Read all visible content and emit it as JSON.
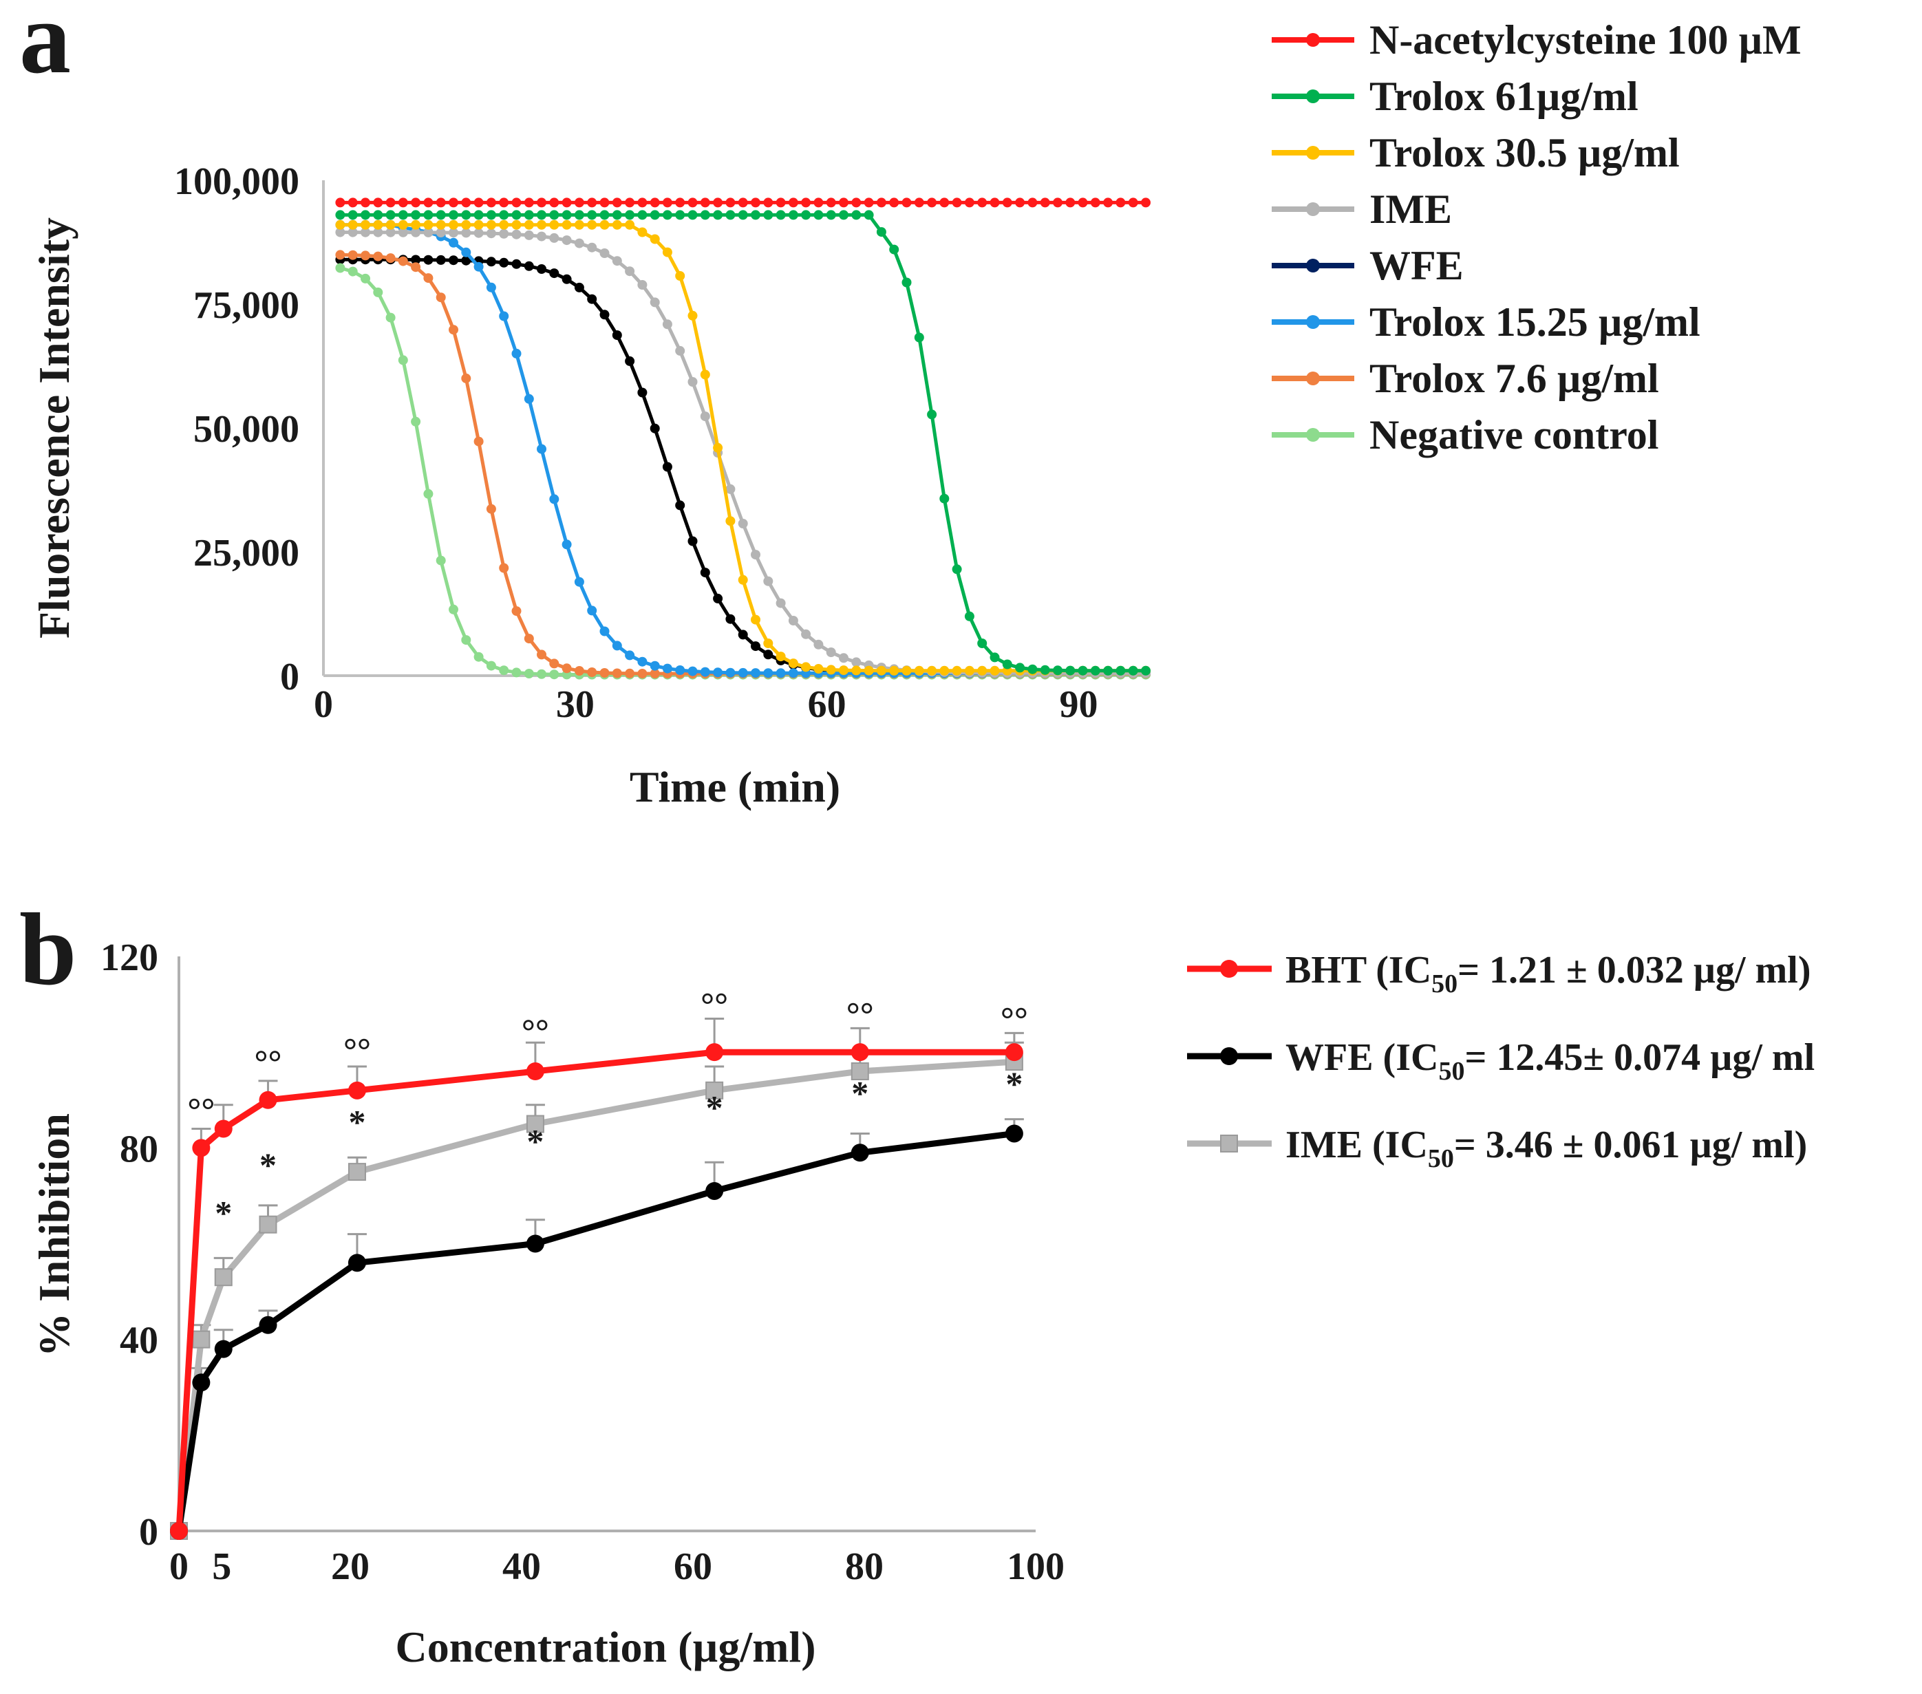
{
  "chart_data": [
    {
      "panel": "a",
      "type": "line",
      "title": "",
      "xlabel": "Time (min)",
      "ylabel": "Fluorescence Intensity",
      "xlim": [
        0,
        98
      ],
      "ylim": [
        0,
        100000
      ],
      "xticks": [
        0,
        30,
        60,
        90
      ],
      "xtick_labels": [
        "0",
        "30",
        "60",
        "90"
      ],
      "yticks": [
        0,
        25000,
        50000,
        75000,
        100000
      ],
      "ytick_labels": [
        "0",
        "25,000",
        "50,000",
        "75,000",
        "100,000"
      ],
      "grid": false,
      "legend_position": "top-right, outside",
      "point_interval": 1.5,
      "x_start": 2,
      "x_end": 98,
      "series": [
        {
          "name": "N-acetylcysteine 100 µM",
          "color": "#ff1a1a",
          "model": "flat",
          "top": 95500
        },
        {
          "name": "Trolox 61µg/ml",
          "color": "#00b050",
          "model": "logistic",
          "top": 93000,
          "bottom": 1000,
          "mid": 73,
          "width": 2.0,
          "hold": 65
        },
        {
          "name": "Trolox 30.5 µg/ml",
          "color": "#ffc000",
          "model": "logistic",
          "top": 91000,
          "bottom": 1000,
          "mid": 47,
          "width": 2.2,
          "hold": 37
        },
        {
          "name": "IME",
          "color": "#b4b4b4",
          "model": "logistic",
          "top": 89500,
          "bottom": 500,
          "mid": 47,
          "width": 4.5
        },
        {
          "name": "WFE",
          "color": "#002060",
          "model": "none"
        },
        {
          "name": "Trolox 15.25 µg/ml",
          "color": "#2196e8",
          "model": "logistic",
          "top": 91000,
          "bottom": 500,
          "mid": 26,
          "width": 3.3,
          "hold": 8
        },
        {
          "name": "Trolox  7.6 µg/ml",
          "color": "#f08040",
          "model": "logistic",
          "top": 85000,
          "bottom": 400,
          "mid": 19,
          "width": 2.3
        },
        {
          "name": "Negative control",
          "color": "#8ddb8d",
          "model": "logistic",
          "top": 83000,
          "bottom": 200,
          "mid": 12,
          "width": 2.1
        },
        {
          "name": "WFE (black curve)",
          "color": "#000000",
          "model": "logistic",
          "top": 84000,
          "bottom": 300,
          "mid": 41,
          "width": 4.0,
          "hold": 8,
          "legend": false
        }
      ]
    },
    {
      "panel": "b",
      "type": "line",
      "title": "",
      "xlabel": "Concentration (µg/ml)",
      "ylabel": "% Inhibition",
      "xlim": [
        0,
        100
      ],
      "ylim": [
        0,
        120
      ],
      "xticks": [
        0,
        5,
        20,
        40,
        60,
        80,
        100
      ],
      "xtick_labels": [
        "0",
        "5",
        "20",
        "40",
        "60",
        "80",
        "100"
      ],
      "yticks": [
        0,
        40,
        80,
        120
      ],
      "ytick_labels": [
        "0",
        "40",
        "80",
        "120"
      ],
      "grid": false,
      "legend_position": "top-right, outside",
      "x": [
        0,
        2.6,
        5.2,
        10.4,
        20.8,
        41.6,
        62.5,
        79.5,
        97.5
      ],
      "series": [
        {
          "name": "BHT",
          "legend_pre": "BHT (IC",
          "legend_sub": "50",
          "legend_post": "= 1.21 ± 0.032 µg/ ml)",
          "color": "#ff1a1a",
          "marker": "circle",
          "values": [
            0,
            80,
            84,
            90,
            92,
            96,
            100,
            100,
            100
          ],
          "errors": [
            0,
            4,
            5,
            4,
            5,
            6,
            7,
            5,
            4
          ]
        },
        {
          "name": "WFE",
          "legend_pre": " WFE (IC",
          "legend_sub": "50",
          "legend_post": "= 12.45± 0.074 µg/ ml",
          "color": "#000000",
          "marker": "circle",
          "values": [
            0,
            31,
            38,
            43,
            56,
            60,
            71,
            79,
            83
          ],
          "errors": [
            0,
            3,
            4,
            3,
            6,
            5,
            6,
            4,
            3
          ]
        },
        {
          "name": "IME",
          "legend_pre": "IME (IC",
          "legend_sub": "50",
          "legend_post": "= 3.46 ± 0.061 µg/ ml)",
          "color": "#b4b4b4",
          "marker": "square",
          "values": [
            0,
            40,
            53,
            64,
            75,
            85,
            92,
            96,
            98
          ],
          "errors": [
            0,
            3,
            4,
            4,
            3,
            4,
            5,
            4,
            4
          ]
        }
      ],
      "annotations": [
        {
          "text": "°°",
          "x": 2.6,
          "y": 85.5
        },
        {
          "text": "°°",
          "x": 10.4,
          "y": 95.5
        },
        {
          "text": "°°",
          "x": 20.8,
          "y": 98
        },
        {
          "text": "°°",
          "x": 41.6,
          "y": 102
        },
        {
          "text": "°°",
          "x": 62.5,
          "y": 107.5
        },
        {
          "text": "°°",
          "x": 79.5,
          "y": 105.5
        },
        {
          "text": "°°",
          "x": 97.5,
          "y": 104.5
        },
        {
          "text": "*",
          "x": 5.2,
          "y": 64
        },
        {
          "text": "*",
          "x": 10.4,
          "y": 74
        },
        {
          "text": "*",
          "x": 20.8,
          "y": 83
        },
        {
          "text": "*",
          "x": 41.6,
          "y": 79
        },
        {
          "text": "*",
          "x": 62.5,
          "y": 86
        },
        {
          "text": "*",
          "x": 79.5,
          "y": 89
        },
        {
          "text": "*",
          "x": 97.5,
          "y": 91
        }
      ]
    }
  ]
}
